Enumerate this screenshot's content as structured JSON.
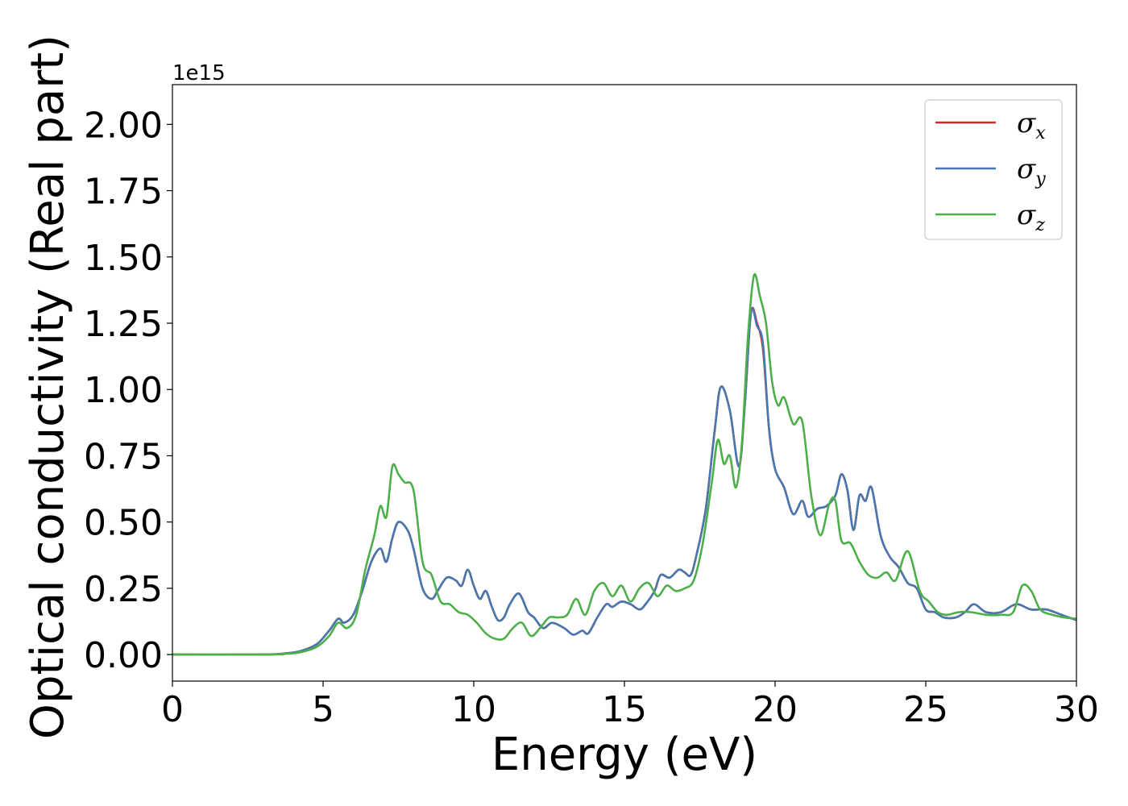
{
  "chart_data": {
    "type": "line",
    "title": "",
    "xlabel": "Energy (eV)",
    "ylabel": "Optical conductivity (Real part)",
    "y_offset_text": "1e15",
    "xlim": [
      0,
      30
    ],
    "ylim": [
      -0.1,
      2.15
    ],
    "x_ticks": [
      0,
      5,
      10,
      15,
      20,
      25,
      30
    ],
    "x_tick_labels": [
      "0",
      "5",
      "10",
      "15",
      "20",
      "25",
      "30"
    ],
    "y_ticks": [
      0.0,
      0.25,
      0.5,
      0.75,
      1.0,
      1.25,
      1.5,
      1.75,
      2.0
    ],
    "y_tick_labels": [
      "0.00",
      "0.25",
      "0.50",
      "0.75",
      "1.00",
      "1.25",
      "1.50",
      "1.75",
      "2.00"
    ],
    "grid": false,
    "legend_position": "top-right",
    "series": [
      {
        "name": "σx",
        "legend_symbol": "σ",
        "legend_sub": "x",
        "color": "#d62728",
        "points": [
          [
            0,
            0
          ],
          [
            3,
            0
          ],
          [
            3.8,
            0.005
          ],
          [
            4.3,
            0.015
          ],
          [
            4.8,
            0.04
          ],
          [
            5.2,
            0.09
          ],
          [
            5.5,
            0.135
          ],
          [
            5.7,
            0.12
          ],
          [
            6.0,
            0.15
          ],
          [
            6.3,
            0.24
          ],
          [
            6.6,
            0.35
          ],
          [
            6.9,
            0.4
          ],
          [
            7.1,
            0.35
          ],
          [
            7.3,
            0.44
          ],
          [
            7.5,
            0.5
          ],
          [
            7.8,
            0.47
          ],
          [
            8.0,
            0.4
          ],
          [
            8.3,
            0.25
          ],
          [
            8.6,
            0.21
          ],
          [
            8.8,
            0.24
          ],
          [
            9.1,
            0.29
          ],
          [
            9.4,
            0.28
          ],
          [
            9.6,
            0.26
          ],
          [
            9.8,
            0.32
          ],
          [
            10.0,
            0.26
          ],
          [
            10.2,
            0.21
          ],
          [
            10.4,
            0.24
          ],
          [
            10.6,
            0.18
          ],
          [
            10.8,
            0.13
          ],
          [
            11.0,
            0.14
          ],
          [
            11.2,
            0.19
          ],
          [
            11.5,
            0.23
          ],
          [
            11.8,
            0.16
          ],
          [
            12.0,
            0.14
          ],
          [
            12.3,
            0.1
          ],
          [
            12.6,
            0.12
          ],
          [
            13.0,
            0.1
          ],
          [
            13.3,
            0.075
          ],
          [
            13.6,
            0.09
          ],
          [
            13.8,
            0.08
          ],
          [
            14.1,
            0.14
          ],
          [
            14.4,
            0.19
          ],
          [
            14.6,
            0.18
          ],
          [
            14.9,
            0.2
          ],
          [
            15.2,
            0.19
          ],
          [
            15.5,
            0.17
          ],
          [
            15.7,
            0.19
          ],
          [
            16.0,
            0.24
          ],
          [
            16.2,
            0.3
          ],
          [
            16.5,
            0.29
          ],
          [
            16.8,
            0.32
          ],
          [
            17.0,
            0.31
          ],
          [
            17.2,
            0.3
          ],
          [
            17.4,
            0.38
          ],
          [
            17.7,
            0.55
          ],
          [
            18.0,
            0.85
          ],
          [
            18.2,
            1.01
          ],
          [
            18.5,
            0.92
          ],
          [
            18.8,
            0.71
          ],
          [
            19.0,
            0.95
          ],
          [
            19.2,
            1.29
          ],
          [
            19.4,
            1.25
          ],
          [
            19.6,
            1.15
          ],
          [
            19.8,
            0.85
          ],
          [
            20.0,
            0.7
          ],
          [
            20.3,
            0.63
          ],
          [
            20.6,
            0.53
          ],
          [
            20.9,
            0.58
          ],
          [
            21.1,
            0.52
          ],
          [
            21.4,
            0.55
          ],
          [
            21.7,
            0.56
          ],
          [
            22.0,
            0.6
          ],
          [
            22.2,
            0.68
          ],
          [
            22.4,
            0.62
          ],
          [
            22.6,
            0.47
          ],
          [
            22.8,
            0.6
          ],
          [
            23.0,
            0.58
          ],
          [
            23.2,
            0.63
          ],
          [
            23.5,
            0.45
          ],
          [
            23.8,
            0.37
          ],
          [
            24.1,
            0.33
          ],
          [
            24.4,
            0.27
          ],
          [
            24.7,
            0.25
          ],
          [
            25.0,
            0.17
          ],
          [
            25.3,
            0.16
          ],
          [
            25.6,
            0.14
          ],
          [
            26.0,
            0.14
          ],
          [
            26.3,
            0.16
          ],
          [
            26.6,
            0.19
          ],
          [
            27.0,
            0.16
          ],
          [
            27.5,
            0.16
          ],
          [
            28.0,
            0.19
          ],
          [
            28.5,
            0.17
          ],
          [
            29.0,
            0.17
          ],
          [
            29.5,
            0.15
          ],
          [
            30.0,
            0.13
          ]
        ]
      },
      {
        "name": "σy",
        "legend_symbol": "σ",
        "legend_sub": "y",
        "color": "#4878b0",
        "points": [
          [
            0,
            0
          ],
          [
            3,
            0
          ],
          [
            3.8,
            0.005
          ],
          [
            4.3,
            0.015
          ],
          [
            4.8,
            0.04
          ],
          [
            5.2,
            0.09
          ],
          [
            5.5,
            0.135
          ],
          [
            5.7,
            0.12
          ],
          [
            6.0,
            0.15
          ],
          [
            6.3,
            0.24
          ],
          [
            6.6,
            0.35
          ],
          [
            6.9,
            0.4
          ],
          [
            7.1,
            0.35
          ],
          [
            7.3,
            0.44
          ],
          [
            7.5,
            0.5
          ],
          [
            7.8,
            0.47
          ],
          [
            8.0,
            0.4
          ],
          [
            8.3,
            0.25
          ],
          [
            8.6,
            0.21
          ],
          [
            8.8,
            0.24
          ],
          [
            9.1,
            0.29
          ],
          [
            9.4,
            0.28
          ],
          [
            9.6,
            0.26
          ],
          [
            9.8,
            0.32
          ],
          [
            10.0,
            0.26
          ],
          [
            10.2,
            0.21
          ],
          [
            10.4,
            0.24
          ],
          [
            10.6,
            0.18
          ],
          [
            10.8,
            0.13
          ],
          [
            11.0,
            0.14
          ],
          [
            11.2,
            0.19
          ],
          [
            11.5,
            0.23
          ],
          [
            11.8,
            0.16
          ],
          [
            12.0,
            0.14
          ],
          [
            12.3,
            0.1
          ],
          [
            12.6,
            0.12
          ],
          [
            13.0,
            0.1
          ],
          [
            13.3,
            0.075
          ],
          [
            13.6,
            0.09
          ],
          [
            13.8,
            0.08
          ],
          [
            14.1,
            0.14
          ],
          [
            14.4,
            0.19
          ],
          [
            14.6,
            0.18
          ],
          [
            14.9,
            0.2
          ],
          [
            15.2,
            0.19
          ],
          [
            15.5,
            0.17
          ],
          [
            15.7,
            0.19
          ],
          [
            16.0,
            0.24
          ],
          [
            16.2,
            0.3
          ],
          [
            16.5,
            0.29
          ],
          [
            16.8,
            0.32
          ],
          [
            17.0,
            0.31
          ],
          [
            17.2,
            0.3
          ],
          [
            17.4,
            0.38
          ],
          [
            17.7,
            0.55
          ],
          [
            18.0,
            0.85
          ],
          [
            18.2,
            1.01
          ],
          [
            18.5,
            0.92
          ],
          [
            18.8,
            0.71
          ],
          [
            19.0,
            0.95
          ],
          [
            19.2,
            1.29
          ],
          [
            19.4,
            1.24
          ],
          [
            19.6,
            1.17
          ],
          [
            19.8,
            0.85
          ],
          [
            20.0,
            0.7
          ],
          [
            20.3,
            0.63
          ],
          [
            20.6,
            0.53
          ],
          [
            20.9,
            0.58
          ],
          [
            21.1,
            0.52
          ],
          [
            21.4,
            0.55
          ],
          [
            21.7,
            0.56
          ],
          [
            22.0,
            0.6
          ],
          [
            22.2,
            0.68
          ],
          [
            22.4,
            0.62
          ],
          [
            22.6,
            0.47
          ],
          [
            22.8,
            0.6
          ],
          [
            23.0,
            0.58
          ],
          [
            23.2,
            0.63
          ],
          [
            23.5,
            0.45
          ],
          [
            23.8,
            0.37
          ],
          [
            24.1,
            0.33
          ],
          [
            24.4,
            0.27
          ],
          [
            24.7,
            0.25
          ],
          [
            25.0,
            0.17
          ],
          [
            25.3,
            0.16
          ],
          [
            25.6,
            0.14
          ],
          [
            26.0,
            0.14
          ],
          [
            26.3,
            0.16
          ],
          [
            26.6,
            0.19
          ],
          [
            27.0,
            0.16
          ],
          [
            27.5,
            0.16
          ],
          [
            28.0,
            0.19
          ],
          [
            28.5,
            0.17
          ],
          [
            29.0,
            0.17
          ],
          [
            29.5,
            0.15
          ],
          [
            30.0,
            0.13
          ]
        ]
      },
      {
        "name": "σz",
        "legend_symbol": "σ",
        "legend_sub": "z",
        "color": "#4daf4a",
        "points": [
          [
            0,
            0
          ],
          [
            3,
            0
          ],
          [
            3.8,
            0.003
          ],
          [
            4.3,
            0.01
          ],
          [
            4.8,
            0.03
          ],
          [
            5.2,
            0.07
          ],
          [
            5.5,
            0.12
          ],
          [
            5.8,
            0.1
          ],
          [
            6.1,
            0.15
          ],
          [
            6.4,
            0.32
          ],
          [
            6.7,
            0.45
          ],
          [
            6.9,
            0.56
          ],
          [
            7.1,
            0.52
          ],
          [
            7.3,
            0.71
          ],
          [
            7.5,
            0.68
          ],
          [
            7.7,
            0.65
          ],
          [
            8.0,
            0.62
          ],
          [
            8.3,
            0.35
          ],
          [
            8.6,
            0.3
          ],
          [
            8.9,
            0.2
          ],
          [
            9.2,
            0.19
          ],
          [
            9.5,
            0.16
          ],
          [
            9.8,
            0.15
          ],
          [
            10.1,
            0.12
          ],
          [
            10.4,
            0.08
          ],
          [
            10.7,
            0.06
          ],
          [
            11.0,
            0.06
          ],
          [
            11.3,
            0.1
          ],
          [
            11.6,
            0.12
          ],
          [
            11.9,
            0.07
          ],
          [
            12.2,
            0.1
          ],
          [
            12.5,
            0.14
          ],
          [
            12.8,
            0.14
          ],
          [
            13.1,
            0.15
          ],
          [
            13.4,
            0.21
          ],
          [
            13.7,
            0.15
          ],
          [
            14.0,
            0.24
          ],
          [
            14.3,
            0.27
          ],
          [
            14.6,
            0.22
          ],
          [
            14.9,
            0.26
          ],
          [
            15.2,
            0.2
          ],
          [
            15.5,
            0.25
          ],
          [
            15.8,
            0.27
          ],
          [
            16.1,
            0.22
          ],
          [
            16.4,
            0.26
          ],
          [
            16.7,
            0.24
          ],
          [
            17.0,
            0.25
          ],
          [
            17.3,
            0.28
          ],
          [
            17.6,
            0.42
          ],
          [
            17.9,
            0.65
          ],
          [
            18.1,
            0.81
          ],
          [
            18.3,
            0.72
          ],
          [
            18.5,
            0.75
          ],
          [
            18.7,
            0.63
          ],
          [
            18.9,
            0.8
          ],
          [
            19.1,
            1.2
          ],
          [
            19.3,
            1.43
          ],
          [
            19.5,
            1.35
          ],
          [
            19.7,
            1.25
          ],
          [
            19.9,
            1.03
          ],
          [
            20.1,
            0.94
          ],
          [
            20.3,
            0.97
          ],
          [
            20.6,
            0.87
          ],
          [
            20.9,
            0.88
          ],
          [
            21.2,
            0.6
          ],
          [
            21.5,
            0.45
          ],
          [
            21.8,
            0.57
          ],
          [
            22.0,
            0.58
          ],
          [
            22.2,
            0.43
          ],
          [
            22.5,
            0.42
          ],
          [
            22.8,
            0.35
          ],
          [
            23.1,
            0.3
          ],
          [
            23.4,
            0.29
          ],
          [
            23.7,
            0.31
          ],
          [
            24.0,
            0.28
          ],
          [
            24.4,
            0.39
          ],
          [
            24.8,
            0.24
          ],
          [
            25.1,
            0.2
          ],
          [
            25.4,
            0.16
          ],
          [
            25.7,
            0.15
          ],
          [
            26.1,
            0.16
          ],
          [
            26.5,
            0.16
          ],
          [
            27.0,
            0.15
          ],
          [
            27.5,
            0.15
          ],
          [
            27.9,
            0.16
          ],
          [
            28.2,
            0.26
          ],
          [
            28.5,
            0.24
          ],
          [
            28.8,
            0.17
          ],
          [
            29.2,
            0.15
          ],
          [
            29.6,
            0.14
          ],
          [
            30.0,
            0.135
          ]
        ]
      }
    ]
  }
}
